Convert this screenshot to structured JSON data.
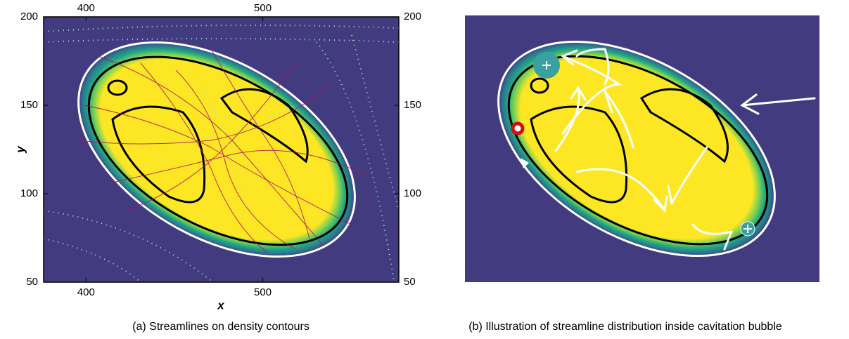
{
  "chart_data": [
    {
      "type": "contour",
      "xlabel": "x",
      "ylabel": "y",
      "xlim": [
        376,
        577
      ],
      "ylim": [
        50,
        200
      ],
      "xticks": [
        400,
        500
      ],
      "yticks": [
        50,
        100,
        150,
        200
      ],
      "caption": "(a) Streamlines on density contours"
    },
    {
      "type": "illustration",
      "caption": "(b) Illustration of streamline distribution inside cavitation bubble"
    }
  ]
}
